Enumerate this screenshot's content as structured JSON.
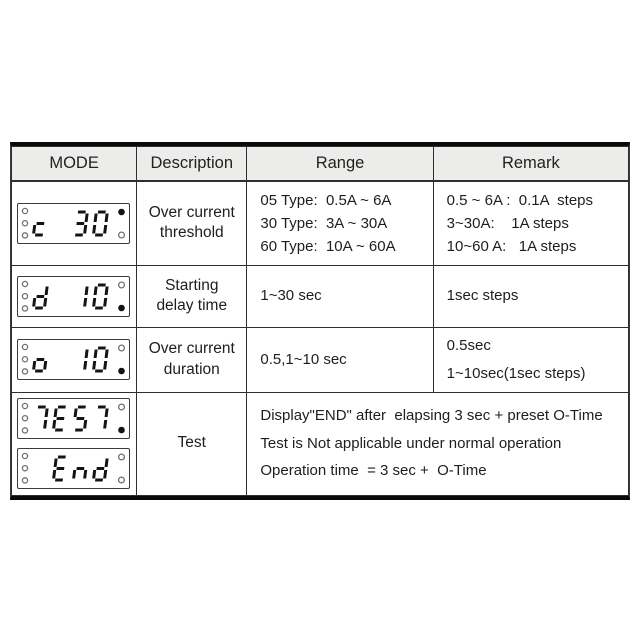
{
  "table": {
    "headers": [
      "MODE",
      "Description",
      "Range",
      "Remark"
    ],
    "rows": [
      {
        "display": {
          "text": "c 30",
          "left_leds": 3,
          "top_right": "filled",
          "bottom_right": "open"
        },
        "description": [
          "Over current",
          "threshold"
        ],
        "range": [
          "05 Type:  0.5A ~ 6A",
          "30 Type:  3A ~ 30A",
          "60 Type:  10A ~ 60A"
        ],
        "remark": [
          "0.5 ~ 6A :  0.1A  steps",
          "3~30A:    1A steps",
          "10~60 A:   1A steps"
        ]
      },
      {
        "display": {
          "text": "d 10",
          "left_leds": 3,
          "top_right": "open",
          "bottom_right": "filled"
        },
        "description": [
          "Starting",
          "delay time"
        ],
        "range": [
          "1~30 sec"
        ],
        "remark": [
          "1sec steps"
        ]
      },
      {
        "display": {
          "text": "o 10",
          "left_leds": 3,
          "top_right": "open",
          "bottom_right": "filled"
        },
        "description": [
          "Over current",
          "duration"
        ],
        "range": [
          "0.5,1~10 sec"
        ],
        "remark": [
          "0.5sec",
          "1~10sec(1sec steps)"
        ]
      },
      {
        "displays": [
          {
            "text": "7E57",
            "left_leds": 3,
            "top_right": "open",
            "bottom_right": "filled"
          },
          {
            "text": " End",
            "left_leds": 3,
            "top_right": "open",
            "bottom_right": "open"
          }
        ],
        "description": [
          "Test"
        ],
        "merged": [
          "Display\"END\" after  elapsing 3 sec + preset O-Time",
          "Test is Not applicable under normal operation",
          "Operation time  = 3 sec +  O-Time"
        ]
      }
    ]
  },
  "colors": {
    "segment": "#141414",
    "led_ring": "#6f6f6f",
    "header_bg": "#ececea",
    "border_thick": "#0a0a0a",
    "border_thin": "#2f2f2f"
  }
}
